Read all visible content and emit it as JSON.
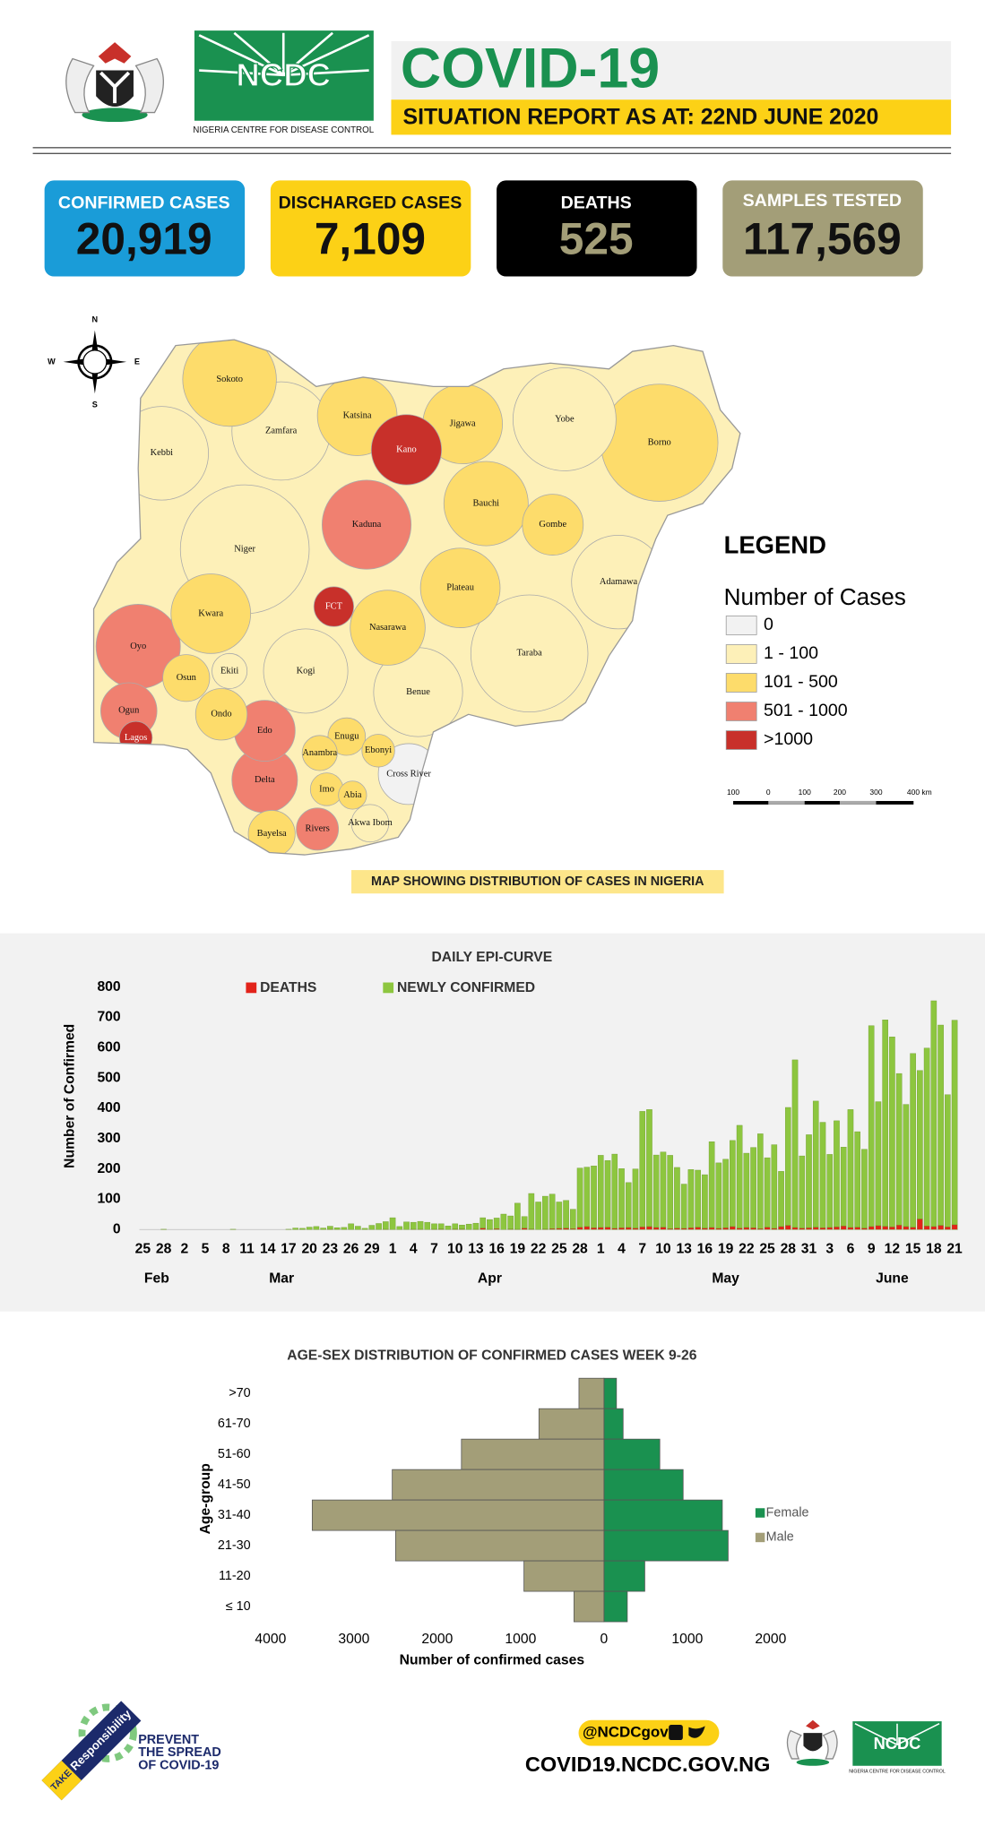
{
  "header": {
    "org": "NCDC",
    "org_full": "NIGERIA CENTRE FOR DISEASE CONTROL",
    "title": "COVID-19",
    "subtitle": "SITUATION REPORT AS AT: 22ND JUNE 2020"
  },
  "stats": [
    {
      "label": "CONFIRMED CASES",
      "value": "20,919"
    },
    {
      "label": "DISCHARGED CASES",
      "value": "7,109"
    },
    {
      "label": "DEATHS",
      "value": "525"
    },
    {
      "label": "SAMPLES TESTED",
      "value": "117,569"
    }
  ],
  "map": {
    "compass": [
      "N",
      "E",
      "S",
      "W"
    ],
    "legend_title": "LEGEND",
    "legend_subtitle": "Number of Cases",
    "legend": [
      {
        "label": "0",
        "color": "#f2f2f2"
      },
      {
        "label": "1 - 100",
        "color": "#fdf0b8"
      },
      {
        "label": "101 - 500",
        "color": "#fddc6b"
      },
      {
        "label": "501 - 1000",
        "color": "#f08070"
      },
      {
        "label": ">1000",
        "color": "#c8302a"
      }
    ],
    "scale": [
      "100",
      "0",
      "100",
      "200",
      "300",
      "400 km"
    ],
    "caption": "MAP SHOWING DISTRIBUTION OF CASES IN NIGERIA",
    "states": [
      {
        "name": "Sokoto",
        "color": "#fddc6b"
      },
      {
        "name": "Zamfara",
        "color": "#fdf0b8"
      },
      {
        "name": "Kebbi",
        "color": "#fdf0b8"
      },
      {
        "name": "Katsina",
        "color": "#fddc6b"
      },
      {
        "name": "Kano",
        "color": "#c8302a"
      },
      {
        "name": "Jigawa",
        "color": "#fddc6b"
      },
      {
        "name": "Yobe",
        "color": "#fdf0b8"
      },
      {
        "name": "Borno",
        "color": "#fddc6b"
      },
      {
        "name": "Bauchi",
        "color": "#fddc6b"
      },
      {
        "name": "Gombe",
        "color": "#fddc6b"
      },
      {
        "name": "Kaduna",
        "color": "#f08070"
      },
      {
        "name": "Niger",
        "color": "#fdf0b8"
      },
      {
        "name": "Adamawa",
        "color": "#fdf0b8"
      },
      {
        "name": "Plateau",
        "color": "#fddc6b"
      },
      {
        "name": "FCT",
        "color": "#c8302a"
      },
      {
        "name": "Kwara",
        "color": "#fddc6b"
      },
      {
        "name": "Nasarawa",
        "color": "#fddc6b"
      },
      {
        "name": "Taraba",
        "color": "#fdf0b8"
      },
      {
        "name": "Oyo",
        "color": "#f08070"
      },
      {
        "name": "Osun",
        "color": "#fddc6b"
      },
      {
        "name": "Ekiti",
        "color": "#fdf0b8"
      },
      {
        "name": "Kogi",
        "color": "#fdf0b8"
      },
      {
        "name": "Benue",
        "color": "#fdf0b8"
      },
      {
        "name": "Ogun",
        "color": "#f08070"
      },
      {
        "name": "Ondo",
        "color": "#fddc6b"
      },
      {
        "name": "Edo",
        "color": "#f08070"
      },
      {
        "name": "Enugu",
        "color": "#fddc6b"
      },
      {
        "name": "Ebonyi",
        "color": "#fddc6b"
      },
      {
        "name": "Anambra",
        "color": "#fddc6b"
      },
      {
        "name": "Lagos",
        "color": "#c8302a"
      },
      {
        "name": "Cross River",
        "color": "#f2f2f2"
      },
      {
        "name": "Delta",
        "color": "#f08070"
      },
      {
        "name": "Imo",
        "color": "#fddc6b"
      },
      {
        "name": "Abia",
        "color": "#fddc6b"
      },
      {
        "name": "Akwa Ibom",
        "color": "#fdf0b8"
      },
      {
        "name": "Bayelsa",
        "color": "#fddc6b"
      },
      {
        "name": "Rivers",
        "color": "#f08070"
      }
    ]
  },
  "chart_data": [
    {
      "type": "bar",
      "stacked": true,
      "title": "DAILY EPI-CURVE",
      "ylabel": "Number of Confirmed",
      "categories": [
        "25",
        null,
        null,
        "28",
        null,
        null,
        "2",
        null,
        null,
        "5",
        null,
        null,
        "8",
        null,
        null,
        "11",
        null,
        null,
        "14",
        null,
        null,
        "17",
        null,
        null,
        "20",
        null,
        null,
        "23",
        null,
        null,
        "26",
        null,
        null,
        "29",
        null,
        null,
        "1",
        null,
        null,
        "4",
        null,
        null,
        "7",
        null,
        null,
        "10",
        null,
        null,
        "13",
        null,
        null,
        "16",
        null,
        null,
        "19",
        null,
        null,
        "22",
        null,
        null,
        "25",
        null,
        null,
        "28",
        null,
        null,
        "1",
        null,
        null,
        "4",
        null,
        null,
        "7",
        null,
        null,
        "10",
        null,
        null,
        "13",
        null,
        null,
        "16",
        null,
        null,
        "19",
        null,
        null,
        "22",
        null,
        null,
        "25",
        null,
        null,
        "28",
        null,
        null,
        "31",
        null,
        null,
        "3",
        null,
        null,
        "6",
        null,
        null,
        "9",
        null,
        null,
        "12",
        null,
        null,
        "15",
        null,
        null,
        "18",
        null,
        null,
        "21"
      ],
      "months": [
        "Feb",
        "Mar",
        "Apr",
        "May",
        "June"
      ],
      "series": [
        {
          "name": "DEATHS",
          "color": "#e2231a",
          "values": [
            0,
            0,
            0,
            0,
            0,
            0,
            0,
            0,
            0,
            0,
            0,
            0,
            0,
            0,
            0,
            0,
            0,
            0,
            0,
            0,
            0,
            0,
            0,
            0,
            0,
            0,
            0,
            1,
            0,
            0,
            0,
            0,
            0,
            0,
            0,
            1,
            0,
            0,
            0,
            1,
            1,
            0,
            1,
            2,
            0,
            2,
            2,
            0,
            1,
            5,
            1,
            3,
            0,
            2,
            1,
            5,
            2,
            0,
            2,
            3,
            4,
            5,
            3,
            8,
            10,
            6,
            7,
            8,
            4,
            6,
            7,
            5,
            9,
            10,
            7,
            8,
            3,
            5,
            4,
            6,
            8,
            5,
            7,
            4,
            6,
            10,
            5,
            7,
            6,
            3,
            8,
            4,
            10,
            14,
            7,
            5,
            6,
            8,
            6,
            7,
            9,
            12,
            7,
            8,
            5,
            10,
            13,
            11,
            9,
            15,
            10,
            8,
            35,
            12,
            10,
            14,
            9,
            16
          ]
        },
        {
          "name": "NEWLY CONFIRMED",
          "color": "#8dc63f",
          "values": [
            0,
            0,
            0,
            1,
            0,
            0,
            0,
            0,
            0,
            0,
            0,
            0,
            0,
            1,
            0,
            0,
            0,
            0,
            0,
            0,
            0,
            1,
            5,
            4,
            8,
            10,
            5,
            10,
            6,
            7,
            19,
            11,
            4,
            14,
            20,
            25,
            39,
            10,
            25,
            23,
            26,
            24,
            18,
            17,
            12,
            17,
            13,
            18,
            20,
            34,
            32,
            35,
            51,
            43,
            86,
            38,
            117,
            91,
            108,
            114,
            87,
            91,
            64,
            195,
            196,
            204,
            238,
            220,
            245,
            195,
            148,
            195,
            381,
            386,
            239,
            248,
            242,
            200,
            146,
            192,
            188,
            176,
            283,
            216,
            226,
            284,
            339,
            245,
            265,
            313,
            229,
            276,
            182,
            389,
            553,
            238,
            307,
            416,
            348,
            241,
            350,
            260,
            389,
            315,
            260,
            663,
            409,
            681,
            627,
            500,
            403,
            573,
            490,
            587,
            745,
            661,
            436,
            675
          ]
        }
      ],
      "ylim": [
        0,
        800
      ],
      "yticks": [
        0,
        100,
        200,
        300,
        400,
        500,
        600,
        700,
        800
      ]
    },
    {
      "type": "pyramid",
      "title": "AGE-SEX DISTRIBUTION OF CONFIRMED CASES WEEK 9-26",
      "ylabel": "Age-group",
      "xlabel": "Number of confirmed cases",
      "categories": [
        ">70",
        "61-70",
        "51-60",
        "41-50",
        "31-40",
        "21-30",
        "11-20",
        "≤ 10"
      ],
      "series": [
        {
          "name": "Female",
          "color": "#1a9150",
          "side": "right",
          "values": [
            150,
            230,
            670,
            950,
            1420,
            1490,
            490,
            280
          ]
        },
        {
          "name": "Male",
          "color": "#a39e78",
          "side": "left",
          "values": [
            300,
            780,
            1710,
            2540,
            3500,
            2500,
            960,
            360
          ]
        }
      ],
      "xlim": [
        -4000,
        2000
      ],
      "xticks": [
        {
          "value": -4000,
          "label": "4000"
        },
        {
          "value": -3000,
          "label": "3000"
        },
        {
          "value": -2000,
          "label": "2000"
        },
        {
          "value": -1000,
          "label": "1000"
        },
        0,
        1000,
        2000
      ]
    }
  ],
  "footer": {
    "take": "TAKE",
    "responsibility": "Responsibility",
    "slogan1": "PREVENT",
    "slogan2": "THE SPREAD",
    "slogan3": "OF COVID-19",
    "handle": "@NCDCgov",
    "url": "COVID19.NCDC.GOV.NG",
    "org": "NCDC",
    "org_full": "NIGERIA CENTRE FOR DISEASE CONTROL"
  }
}
